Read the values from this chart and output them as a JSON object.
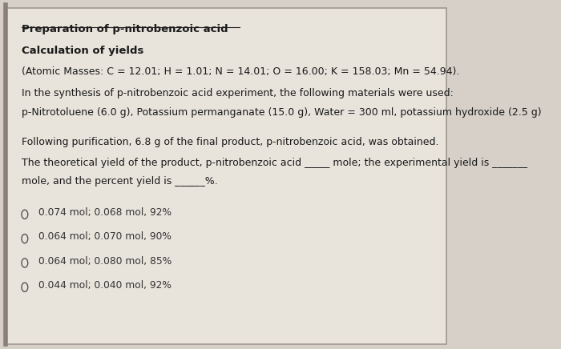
{
  "bg_color": "#d6d0c8",
  "panel_color": "#e8e4dc",
  "border_color": "#a09890",
  "title": "Preparation of p-nitrobenzoic acid",
  "subtitle": "Calculation of yields",
  "line1": "(Atomic Masses: C = 12.01; H = 1.01; N = 14.01; O = 16.00; K = 158.03; Mn = 54.94).",
  "line2": "In the synthesis of p-nitrobenzoic acid experiment, the following materials were used:",
  "line3": "p-Nitrotoluene (6.0 g), Potassium permanganate (15.0 g), Water = 300 ml, potassium hydroxide (2.5 g)",
  "line4": "Following purification, 6.8 g of the final product, p-nitrobenzoic acid, was obtained.",
  "line5a": "The theoretical yield of the product, p-nitrobenzoic acid _____ mole; the experimental yield is _______",
  "line5b": "mole, and the percent yield is ______%.",
  "options": [
    "0.074 mol; 0.068 mol, 92%",
    "0.064 mol; 0.070 mol, 90%",
    "0.064 mol; 0.080 mol, 85%",
    "0.044 mol; 0.040 mol, 92%"
  ],
  "text_color": "#1a1a1a",
  "option_color": "#333333",
  "title_fontsize": 9.5,
  "body_fontsize": 9.0,
  "option_fontsize": 8.8,
  "left_accent_color": "#8a8078",
  "circle_color": "#555555",
  "underline_color": "#1a1a1a"
}
